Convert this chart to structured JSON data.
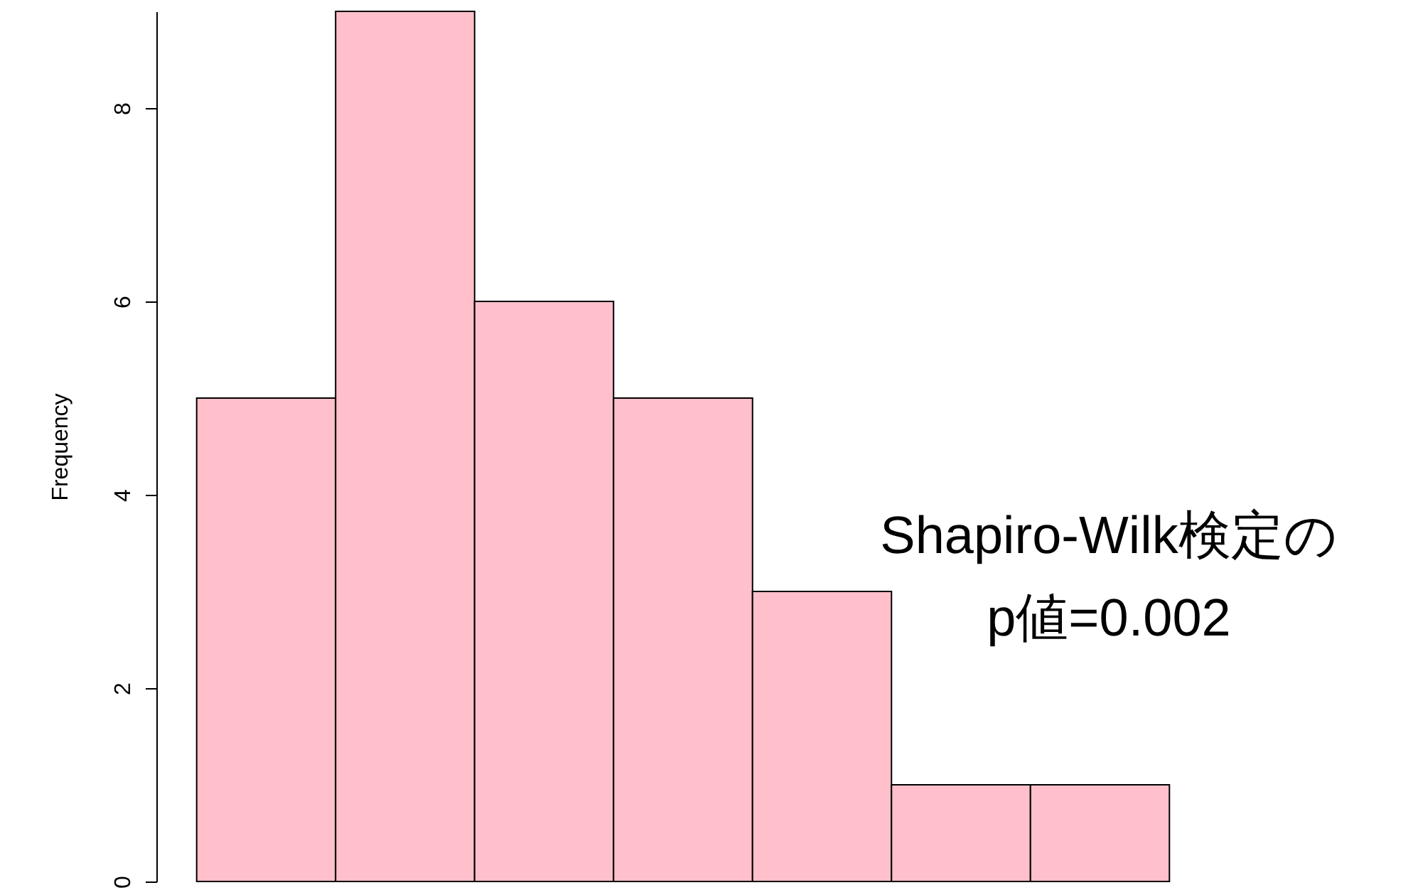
{
  "chart_data": {
    "type": "bar",
    "ylabel": "Frequency",
    "categories": [
      null,
      null,
      null,
      null,
      null,
      null,
      null
    ],
    "values": [
      5,
      9,
      6,
      5,
      3,
      1,
      1
    ],
    "color": "#ffc0cb",
    "ylim": [
      0,
      9
    ],
    "yticks": [
      0,
      2,
      4,
      6,
      8
    ],
    "grid": false,
    "annotations": [
      "Shapiro-Wilk検定の\np値=0.002"
    ]
  }
}
